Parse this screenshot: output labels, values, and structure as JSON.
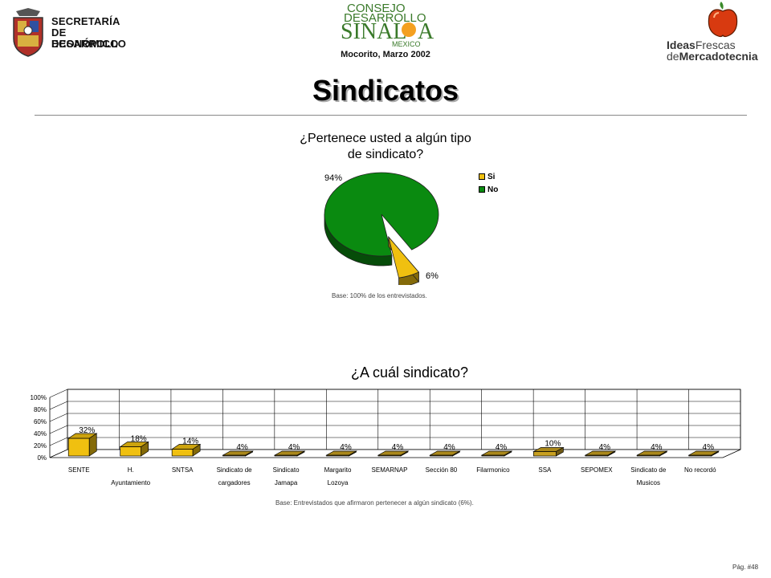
{
  "header": {
    "secretaria_lines": [
      "SECRETARÍA",
      "DE DESARROLLO",
      "ECONÓMICO"
    ],
    "consejo_lines": [
      "CONSEJO",
      "DESARROLLO",
      "SINAL",
      "A",
      "MEXICO"
    ],
    "ideas_line1_a": "Ideas",
    "ideas_line1_b": "Frescas",
    "ideas_line2_a": "de",
    "ideas_line2_b": "Mercadotecnia",
    "location": "Mocorito, Marzo 2002"
  },
  "page": {
    "title": "Sindicatos",
    "page_number": "Pág. #48"
  },
  "colors": {
    "pie_green": "#0a8a10",
    "pie_yellow": "#f0c010",
    "bar_yellow": "#f0c010",
    "bar_gold": "#c8a020"
  },
  "chart_data": [
    {
      "type": "pie",
      "title": "¿Pertenece usted a algún tipo de sindicato?",
      "title_lines": [
        "¿Pertenece usted a algún tipo",
        "de sindicato?"
      ],
      "labels": [
        "Si",
        "No"
      ],
      "values": [
        6,
        94
      ],
      "value_labels": [
        "6%",
        "94%"
      ],
      "legend": "right",
      "base_note": "Base:  100% de los entrevistados."
    },
    {
      "type": "bar",
      "title": "¿A cuál sindicato?",
      "categories": [
        [
          "SENTE"
        ],
        [
          "H.",
          "Ayuntamiento"
        ],
        [
          "SNTSA"
        ],
        [
          "Sindicato de",
          "cargadores"
        ],
        [
          "Sindicato",
          "Jamapa"
        ],
        [
          "Margarito",
          "Lozoya"
        ],
        [
          "SEMARNAP"
        ],
        [
          "Sección 80"
        ],
        [
          "Filarmonico"
        ],
        [
          "SSA"
        ],
        [
          "SEPOMEX"
        ],
        [
          "Sindicato de",
          "Musicos"
        ],
        [
          "No recordó"
        ]
      ],
      "values": [
        32,
        18,
        14,
        4,
        4,
        4,
        4,
        4,
        4,
        10,
        4,
        4,
        4
      ],
      "value_labels": [
        "32%",
        "18%",
        "14%",
        "4%",
        "4%",
        "4%",
        "4%",
        "4%",
        "4%",
        "10%",
        "4%",
        "4%",
        "4%"
      ],
      "ylim": [
        0,
        100
      ],
      "yticks": [
        "0%",
        "20%",
        "40%",
        "60%",
        "80%",
        "100%"
      ],
      "tick_values": [
        0,
        20,
        40,
        60,
        80,
        100
      ],
      "grid": true,
      "base_note": "Base:   Entrevistados que afirmaron pertenecer a algún sindicato (6%)."
    }
  ]
}
